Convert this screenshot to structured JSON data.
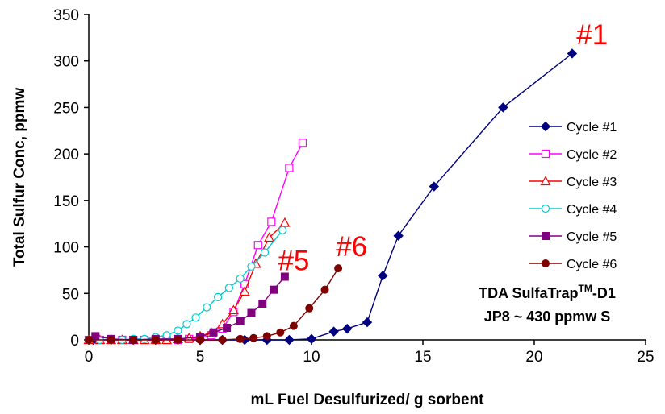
{
  "chart_data": {
    "type": "line",
    "title": "",
    "xlabel": "mL Fuel Desulfurized/ g sorbent",
    "ylabel": "Total Sulfur Conc, ppmw",
    "xlim": [
      0,
      25
    ],
    "ylim": [
      0,
      350
    ],
    "xticks": [
      "0",
      "5",
      "10",
      "15",
      "20",
      "25"
    ],
    "yticks": [
      "0",
      "50",
      "100",
      "150",
      "200",
      "250",
      "300",
      "350"
    ],
    "grid": false,
    "legend_position": "right",
    "series": [
      {
        "name": "Cycle #1",
        "color": "#000080",
        "marker": "diamond-filled",
        "points": [
          [
            0.2,
            0
          ],
          [
            1,
            0
          ],
          [
            2,
            0
          ],
          [
            3,
            0
          ],
          [
            4,
            0
          ],
          [
            5,
            0
          ],
          [
            6,
            0
          ],
          [
            7,
            0
          ],
          [
            8,
            0
          ],
          [
            9,
            0
          ],
          [
            10,
            1
          ],
          [
            11,
            9
          ],
          [
            11.6,
            12
          ],
          [
            12.5,
            19
          ],
          [
            13.2,
            69
          ],
          [
            13.9,
            112
          ],
          [
            15.5,
            165
          ],
          [
            18.6,
            250
          ],
          [
            21.7,
            308
          ]
        ]
      },
      {
        "name": "Cycle #2",
        "color": "#FF00FF",
        "marker": "square-open",
        "points": [
          [
            0,
            0
          ],
          [
            0.5,
            0
          ],
          [
            1,
            0
          ],
          [
            1.5,
            0
          ],
          [
            2,
            0
          ],
          [
            2.5,
            0
          ],
          [
            3,
            0
          ],
          [
            3.5,
            0
          ],
          [
            4,
            0
          ],
          [
            4.5,
            1
          ],
          [
            5,
            2
          ],
          [
            5.5,
            5
          ],
          [
            6,
            12
          ],
          [
            6.5,
            30
          ],
          [
            7,
            60
          ],
          [
            7.6,
            102
          ],
          [
            8.2,
            127
          ],
          [
            9,
            185
          ],
          [
            9.6,
            212
          ]
        ]
      },
      {
        "name": "Cycle #3",
        "color": "#FF0000",
        "marker": "triangle-open",
        "points": [
          [
            0,
            0
          ],
          [
            0.5,
            0
          ],
          [
            1,
            0
          ],
          [
            1.5,
            0
          ],
          [
            2,
            0
          ],
          [
            2.5,
            0
          ],
          [
            3,
            0
          ],
          [
            3.5,
            0
          ],
          [
            4,
            1
          ],
          [
            4.5,
            2
          ],
          [
            5,
            4
          ],
          [
            5.5,
            8
          ],
          [
            6,
            17
          ],
          [
            6.5,
            32
          ],
          [
            7,
            52
          ],
          [
            7.5,
            82
          ],
          [
            8.1,
            110
          ],
          [
            8.8,
            126
          ]
        ]
      },
      {
        "name": "Cycle #4",
        "color": "#00CCCC",
        "marker": "circle-open",
        "points": [
          [
            0,
            0
          ],
          [
            0.5,
            0
          ],
          [
            1,
            0
          ],
          [
            1.5,
            0
          ],
          [
            2,
            1
          ],
          [
            2.5,
            1
          ],
          [
            3,
            3
          ],
          [
            3.5,
            5
          ],
          [
            4,
            10
          ],
          [
            4.4,
            17
          ],
          [
            4.8,
            24
          ],
          [
            5.3,
            35
          ],
          [
            5.8,
            46
          ],
          [
            6.3,
            56
          ],
          [
            6.8,
            66
          ],
          [
            7.3,
            79
          ],
          [
            7.9,
            94
          ],
          [
            8.7,
            118
          ]
        ]
      },
      {
        "name": "Cycle #5",
        "color": "#800080",
        "marker": "square-filled",
        "points": [
          [
            0.3,
            4
          ],
          [
            1,
            1
          ],
          [
            2,
            0
          ],
          [
            3,
            1
          ],
          [
            4,
            1
          ],
          [
            5,
            3
          ],
          [
            5.6,
            8
          ],
          [
            6.2,
            13
          ],
          [
            6.8,
            20
          ],
          [
            7.3,
            29
          ],
          [
            7.8,
            39
          ],
          [
            8.3,
            54
          ],
          [
            8.8,
            68
          ]
        ]
      },
      {
        "name": "Cycle #6",
        "color": "#800000",
        "marker": "circle-filled",
        "points": [
          [
            0,
            0
          ],
          [
            1,
            0
          ],
          [
            2,
            0
          ],
          [
            3,
            0
          ],
          [
            4,
            0
          ],
          [
            5,
            0
          ],
          [
            6,
            0
          ],
          [
            6.8,
            1
          ],
          [
            7.4,
            2
          ],
          [
            8,
            4
          ],
          [
            8.6,
            8
          ],
          [
            9.2,
            15
          ],
          [
            9.9,
            34
          ],
          [
            10.6,
            54
          ],
          [
            11.2,
            77
          ]
        ]
      }
    ],
    "annotations": [
      {
        "text": "#1",
        "x": 22.6,
        "y": 318,
        "color": "#FF0000"
      },
      {
        "text": "#5",
        "x": 9.2,
        "y": 75,
        "color": "#FF0000"
      },
      {
        "text": "#6",
        "x": 11.8,
        "y": 90,
        "color": "#FF0000"
      }
    ],
    "info_box": {
      "line1_main": "TDA SulfaTrap",
      "line1_super": "TM",
      "line1_suffix": "-D1",
      "line2": "JP8 ~ 430 ppmw S"
    }
  }
}
